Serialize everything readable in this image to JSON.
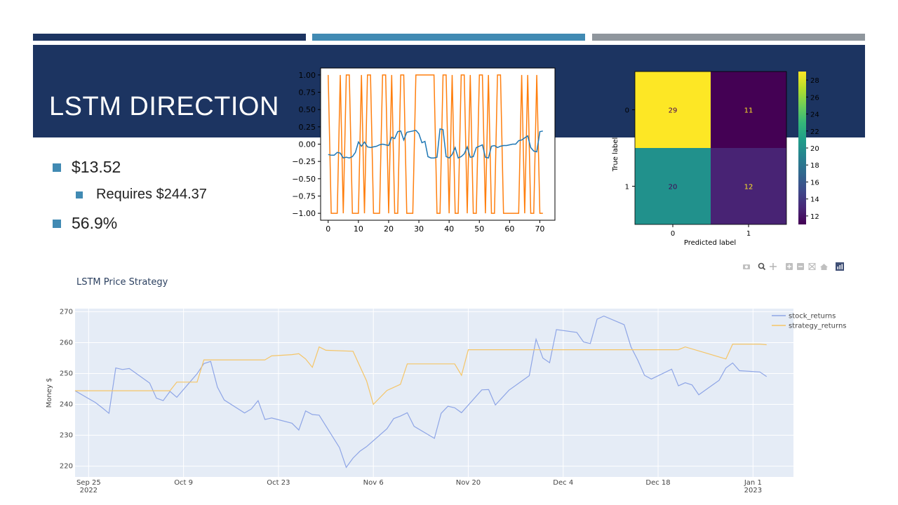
{
  "slide": {
    "title": "LSTM DIRECTION",
    "accent_bars": [
      "#1c3461",
      "#418ab3",
      "#8f969d"
    ],
    "band_color": "#1c3461",
    "bullet_color": "#418ab3",
    "bullets": [
      {
        "text": "$13.52",
        "level": 1
      },
      {
        "text": "Requires $244.37",
        "level": 2
      },
      {
        "text": "56.9%",
        "level": 1
      }
    ]
  },
  "plotly_toolbar": {
    "icons": [
      "camera-icon",
      "zoom-icon",
      "pan-icon",
      "zoom-in-icon",
      "zoom-out-icon",
      "autoscale-icon",
      "home-icon",
      "plotly-logo-icon"
    ]
  },
  "chart_data": [
    {
      "type": "line",
      "title": "",
      "xlim": [
        -2.5,
        75
      ],
      "ylim": [
        -1.1,
        1.1
      ],
      "xticks": [
        0,
        10,
        20,
        30,
        40,
        50,
        60,
        70
      ],
      "yticks": [
        1.0,
        0.75,
        0.5,
        0.25,
        0.0,
        -0.25,
        -0.5,
        -0.75,
        -1.0
      ],
      "ytick_labels": [
        "1.00",
        "0.75",
        "0.50",
        "0.25",
        "0.00",
        "−0.25",
        "−0.50",
        "−0.75",
        "−1.00"
      ],
      "series": [
        {
          "color": "#ff7f0e",
          "values": [
            1,
            -1,
            -1,
            -1,
            1,
            -1,
            1,
            1,
            -1,
            -1,
            -1,
            1,
            -1,
            1,
            1,
            -1,
            -1,
            -1,
            1,
            1,
            -1,
            1,
            -1,
            -1,
            1,
            1,
            -1,
            -1,
            -1,
            1,
            1,
            1,
            1,
            1,
            1,
            1,
            -1,
            -1,
            1,
            1,
            -1,
            1,
            -1,
            -1,
            1,
            1,
            -1,
            1,
            -1,
            -1,
            1,
            1,
            -1,
            1,
            -1,
            -1,
            1,
            1,
            -1,
            -1,
            -1,
            -1,
            -1,
            -1,
            1,
            -1,
            1,
            -1,
            -1,
            1,
            -1,
            -1
          ]
        },
        {
          "color": "#1f77b4",
          "values": [
            -0.15,
            -0.16,
            -0.16,
            -0.12,
            -0.13,
            -0.2,
            -0.19,
            -0.2,
            -0.18,
            -0.12,
            0.03,
            -0.03,
            0.03,
            -0.04,
            -0.05,
            -0.04,
            -0.03,
            -0.01,
            0.0,
            -0.01,
            -0.02,
            0.1,
            0.08,
            0.18,
            0.19,
            0.06,
            0.17,
            0.18,
            0.19,
            0.2,
            0.15,
            0.02,
            0.04,
            -0.18,
            -0.2,
            -0.2,
            -0.19,
            0.22,
            0.21,
            -0.18,
            -0.2,
            -0.15,
            -0.05,
            -0.2,
            -0.18,
            -0.14,
            -0.04,
            -0.19,
            -0.18,
            -0.05,
            -0.03,
            -0.01,
            -0.19,
            -0.2,
            -0.03,
            -0.02,
            -0.05,
            -0.03,
            -0.02,
            -0.02,
            -0.01,
            0.0,
            0.0,
            0.05,
            0.06,
            0.09,
            0.12,
            -0.05,
            -0.1,
            -0.11,
            0.18,
            0.19
          ]
        }
      ]
    },
    {
      "type": "heatmap",
      "title": "",
      "xlabel": "Predicted label",
      "ylabel": "True label",
      "x_categories": [
        "0",
        "1"
      ],
      "y_categories": [
        "0",
        "1"
      ],
      "values": [
        [
          29,
          11
        ],
        [
          20,
          12
        ]
      ],
      "cell_colors": [
        [
          "#fde725",
          "#440154"
        ],
        [
          "#21918c",
          "#482374"
        ]
      ],
      "text_colors": [
        [
          "#440154",
          "#fde725"
        ],
        [
          "#440154",
          "#fde725"
        ]
      ],
      "colorbar": {
        "range": [
          11,
          29
        ],
        "ticks": [
          12,
          14,
          16,
          18,
          20,
          22,
          24,
          26,
          28
        ],
        "colors": [
          "#440154",
          "#482878",
          "#3e4989",
          "#31688e",
          "#26828e",
          "#1f9e89",
          "#35b779",
          "#6ece58",
          "#b5de2b",
          "#fde725"
        ]
      }
    },
    {
      "type": "line",
      "title": "LSTM Price Strategy",
      "xlabel": "",
      "ylabel": "Money $",
      "ylim": [
        216.5,
        271
      ],
      "xlim": [
        "2022-09-23",
        "2023-01-02"
      ],
      "yticks": [
        220,
        230,
        240,
        250,
        260,
        270
      ],
      "xticks": [
        {
          "date": "2022-09-25",
          "label": "Sep 25",
          "sub": "2022"
        },
        {
          "date": "2022-10-09",
          "label": "Oct 9",
          "sub": ""
        },
        {
          "date": "2022-10-23",
          "label": "Oct 23",
          "sub": ""
        },
        {
          "date": "2022-11-06",
          "label": "Nov 6",
          "sub": ""
        },
        {
          "date": "2022-11-20",
          "label": "Nov 20",
          "sub": ""
        },
        {
          "date": "2022-12-04",
          "label": "Dec 4",
          "sub": ""
        },
        {
          "date": "2022-12-18",
          "label": "Dec 18",
          "sub": ""
        },
        {
          "date": "2023-01-01",
          "label": "Jan 1",
          "sub": "2023"
        }
      ],
      "legend_position": "right",
      "grid": true,
      "series": [
        {
          "name": "stock_returns",
          "color": "#8ea5e6",
          "points": [
            [
              "2022-09-23",
              244.4
            ],
            [
              "2022-09-26",
              240.6
            ],
            [
              "2022-09-27",
              238.9
            ],
            [
              "2022-09-28",
              237.1
            ],
            [
              "2022-09-29",
              251.8
            ],
            [
              "2022-09-30",
              251.3
            ],
            [
              "2022-10-01",
              251.6
            ],
            [
              "2022-10-04",
              246.9
            ],
            [
              "2022-10-05",
              242.0
            ],
            [
              "2022-10-06",
              241.2
            ],
            [
              "2022-10-07",
              244.2
            ],
            [
              "2022-10-08",
              242.3
            ],
            [
              "2022-10-11",
              249.9
            ],
            [
              "2022-10-12",
              253.2
            ],
            [
              "2022-10-13",
              253.9
            ],
            [
              "2022-10-14",
              245.6
            ],
            [
              "2022-10-15",
              241.4
            ],
            [
              "2022-10-18",
              237.2
            ],
            [
              "2022-10-19",
              238.5
            ],
            [
              "2022-10-20",
              241.2
            ],
            [
              "2022-10-21",
              235.1
            ],
            [
              "2022-10-22",
              235.6
            ],
            [
              "2022-10-25",
              233.9
            ],
            [
              "2022-10-26",
              231.7
            ],
            [
              "2022-10-27",
              237.9
            ],
            [
              "2022-10-28",
              236.7
            ],
            [
              "2022-10-29",
              236.5
            ],
            [
              "2022-11-01",
              226.0
            ],
            [
              "2022-11-02",
              219.6
            ],
            [
              "2022-11-03",
              222.6
            ],
            [
              "2022-11-04",
              224.8
            ],
            [
              "2022-11-05",
              226.3
            ],
            [
              "2022-11-08",
              232.1
            ],
            [
              "2022-11-09",
              235.4
            ],
            [
              "2022-11-10",
              236.2
            ],
            [
              "2022-11-11",
              237.3
            ],
            [
              "2022-11-12",
              232.9
            ],
            [
              "2022-11-15",
              229.0
            ],
            [
              "2022-11-16",
              237.1
            ],
            [
              "2022-11-17",
              239.4
            ],
            [
              "2022-11-18",
              238.9
            ],
            [
              "2022-11-19",
              237.3
            ],
            [
              "2022-11-22",
              244.7
            ],
            [
              "2022-11-23",
              244.8
            ],
            [
              "2022-11-24",
              239.8
            ],
            [
              "2022-11-26",
              244.6
            ],
            [
              "2022-11-29",
              249.3
            ],
            [
              "2022-11-30",
              261.1
            ],
            [
              "2022-12-01",
              255.0
            ],
            [
              "2022-12-02",
              253.5
            ],
            [
              "2022-12-03",
              264.2
            ],
            [
              "2022-12-06",
              263.3
            ],
            [
              "2022-12-07",
              260.2
            ],
            [
              "2022-12-08",
              259.7
            ],
            [
              "2022-12-09",
              267.6
            ],
            [
              "2022-12-10",
              268.6
            ],
            [
              "2022-12-13",
              265.8
            ],
            [
              "2022-12-14",
              258.6
            ],
            [
              "2022-12-15",
              254.3
            ],
            [
              "2022-12-16",
              249.4
            ],
            [
              "2022-12-17",
              248.2
            ],
            [
              "2022-12-20",
              251.4
            ],
            [
              "2022-12-21",
              246.0
            ],
            [
              "2022-12-22",
              247.0
            ],
            [
              "2022-12-23",
              246.3
            ],
            [
              "2022-12-24",
              243.1
            ],
            [
              "2022-12-27",
              247.8
            ],
            [
              "2022-12-28",
              251.8
            ],
            [
              "2022-12-29",
              253.4
            ],
            [
              "2022-12-30",
              250.9
            ],
            [
              "2023-01-02",
              250.5
            ],
            [
              "2023-01-03",
              249.0
            ]
          ]
        },
        {
          "name": "strategy_returns",
          "color": "#f5c567",
          "points": [
            [
              "2022-09-23",
              244.4
            ],
            [
              "2022-09-29",
              244.4
            ],
            [
              "2022-10-01",
              244.4
            ],
            [
              "2022-10-07",
              244.4
            ],
            [
              "2022-10-08",
              247.2
            ],
            [
              "2022-10-11",
              247.2
            ],
            [
              "2022-10-12",
              254.4
            ],
            [
              "2022-10-15",
              254.4
            ],
            [
              "2022-10-21",
              254.4
            ],
            [
              "2022-10-22",
              255.7
            ],
            [
              "2022-10-25",
              256.1
            ],
            [
              "2022-10-26",
              256.4
            ],
            [
              "2022-10-27",
              254.7
            ],
            [
              "2022-10-28",
              252.0
            ],
            [
              "2022-10-29",
              258.6
            ],
            [
              "2022-10-30",
              257.5
            ],
            [
              "2022-11-03",
              257.2
            ],
            [
              "2022-11-05",
              247.6
            ],
            [
              "2022-11-06",
              240.0
            ],
            [
              "2022-11-08",
              244.5
            ],
            [
              "2022-11-10",
              246.5
            ],
            [
              "2022-11-11",
              253.1
            ],
            [
              "2022-11-15",
              253.1
            ],
            [
              "2022-11-18",
              253.1
            ],
            [
              "2022-11-19",
              249.4
            ],
            [
              "2022-11-20",
              257.7
            ],
            [
              "2022-11-25",
              257.7
            ],
            [
              "2022-12-01",
              257.7
            ],
            [
              "2022-12-20",
              257.7
            ],
            [
              "2022-12-21",
              257.7
            ],
            [
              "2022-12-22",
              258.6
            ],
            [
              "2022-12-28",
              254.7
            ],
            [
              "2022-12-29",
              259.5
            ],
            [
              "2023-01-02",
              259.5
            ],
            [
              "2023-01-03",
              259.3
            ]
          ]
        }
      ]
    }
  ]
}
